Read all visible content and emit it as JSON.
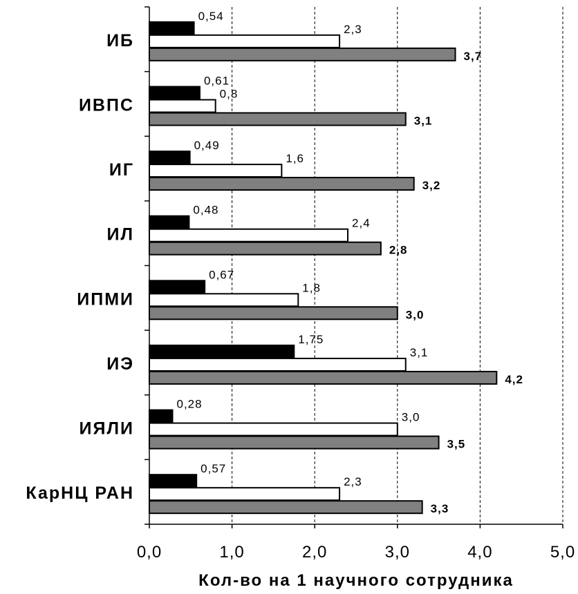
{
  "chart_data": {
    "type": "bar",
    "orientation": "horizontal",
    "categories": [
      "ИБ",
      "ИВПС",
      "ИГ",
      "ИЛ",
      "ИПМИ",
      "ИЭ",
      "ИЯЛИ",
      "КарНЦ РАН"
    ],
    "series": [
      {
        "color": "#000000",
        "values": [
          0.54,
          0.61,
          0.49,
          0.48,
          0.67,
          1.75,
          0.28,
          0.57
        ],
        "labels": [
          "0,54",
          "0,61",
          "0,49",
          "0,48",
          "0,67",
          "1,75",
          "0,28",
          "0,57"
        ]
      },
      {
        "color": "#ffffff",
        "values": [
          2.3,
          0.8,
          1.6,
          2.4,
          1.8,
          3.1,
          3.0,
          2.3
        ],
        "labels": [
          "2,3",
          "0,8",
          "1,6",
          "2,4",
          "1,8",
          "3,1",
          "3,0",
          "2,3"
        ]
      },
      {
        "color": "#808080",
        "values": [
          3.7,
          3.1,
          3.2,
          2.8,
          3.0,
          4.2,
          3.5,
          3.3
        ],
        "labels": [
          "3,7",
          "3,1",
          "3,2",
          "2,8",
          "3,0",
          "4,2",
          "3,5",
          "3,3"
        ]
      }
    ],
    "xlim": [
      0,
      5
    ],
    "xticks": [
      "0,0",
      "1,0",
      "2,0",
      "3,0",
      "4,0",
      "5,0"
    ],
    "xlabel": "Кол-во на 1 научного сотрудника",
    "ylabel": "",
    "grid": "vertical-dashed",
    "legend": "none"
  }
}
